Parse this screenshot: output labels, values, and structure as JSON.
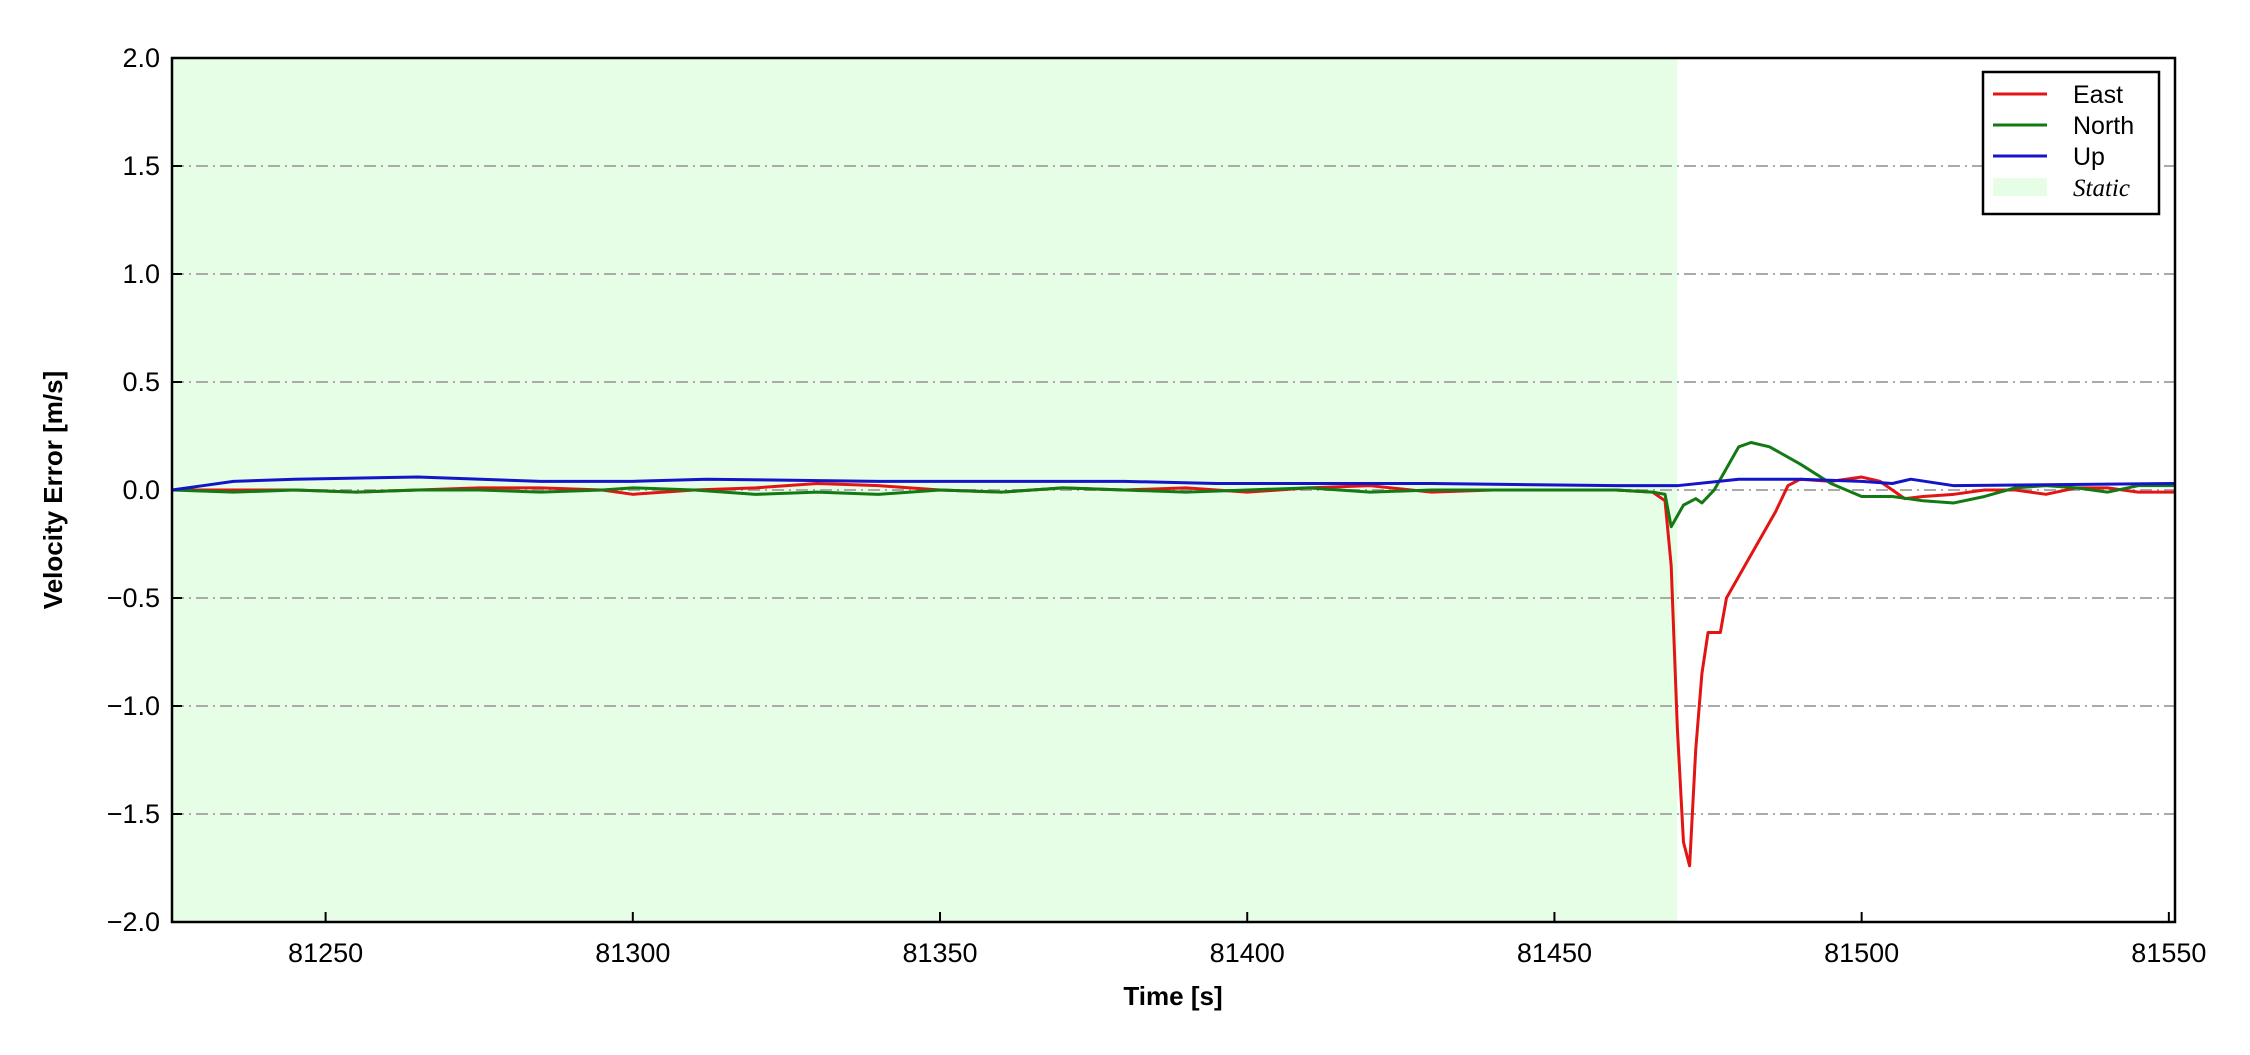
{
  "chart_data": {
    "type": "line",
    "xlabel": "Time [s]",
    "ylabel": "Velocity Error [m/s]",
    "xlim": [
      81225,
      81551
    ],
    "ylim": [
      -2.0,
      2.0
    ],
    "xticks": [
      81250,
      81300,
      81350,
      81400,
      81450,
      81500,
      81550
    ],
    "yticks": [
      {
        "value": -2.0,
        "label": "−2.0"
      },
      {
        "value": -1.5,
        "label": "−1.5"
      },
      {
        "value": -1.0,
        "label": "−1.0"
      },
      {
        "value": -0.5,
        "label": "−0.5"
      },
      {
        "value": 0,
        "label": "0.0"
      },
      {
        "value": 0.5,
        "label": "0.5"
      },
      {
        "value": 1.0,
        "label": "1.0"
      },
      {
        "value": 1.5,
        "label": "1.5"
      },
      {
        "value": 2.0,
        "label": "2.0"
      }
    ],
    "grid": true,
    "legend": "upper right",
    "shaded_regions": [
      {
        "name": "Static",
        "xmin": 81225,
        "xmax": 81470,
        "color": "#e6fde6"
      }
    ],
    "series": [
      {
        "name": "East",
        "color": "#e31414",
        "x": [
          81225,
          81235,
          81245,
          81255,
          81265,
          81275,
          81285,
          81295,
          81300,
          81310,
          81320,
          81330,
          81340,
          81350,
          81360,
          81370,
          81380,
          81390,
          81400,
          81410,
          81420,
          81430,
          81440,
          81450,
          81460,
          81466,
          81468,
          81469,
          81470,
          81471,
          81472,
          81473,
          81474,
          81475,
          81477,
          81478,
          81482,
          81486,
          81488,
          81490,
          81495,
          81500,
          81503,
          81507,
          81510,
          81515,
          81520,
          81525,
          81530,
          81535,
          81540,
          81545,
          81551
        ],
        "values": [
          0,
          0,
          0,
          -0.01,
          0,
          0.01,
          0.01,
          0,
          -0.02,
          0,
          0.01,
          0.03,
          0.02,
          0,
          -0.01,
          0.01,
          0,
          0.01,
          -0.01,
          0.01,
          0.02,
          -0.01,
          0,
          0,
          0,
          -0.01,
          -0.05,
          -0.35,
          -1.1,
          -1.63,
          -1.74,
          -1.2,
          -0.85,
          -0.66,
          -0.66,
          -0.5,
          -0.3,
          -0.1,
          0.02,
          0.05,
          0.04,
          0.06,
          0.04,
          -0.04,
          -0.03,
          -0.02,
          0,
          0,
          -0.02,
          0.01,
          0.01,
          -0.01,
          -0.01
        ]
      },
      {
        "name": "North",
        "color": "#137a13",
        "x": [
          81225,
          81235,
          81245,
          81255,
          81265,
          81275,
          81285,
          81295,
          81300,
          81310,
          81320,
          81330,
          81340,
          81350,
          81360,
          81370,
          81380,
          81390,
          81400,
          81410,
          81420,
          81430,
          81440,
          81450,
          81460,
          81466,
          81468,
          81469,
          81471,
          81473,
          81474,
          81476,
          81478,
          81480,
          81482,
          81485,
          81490,
          81495,
          81500,
          81505,
          81510,
          81515,
          81520,
          81525,
          81530,
          81535,
          81540,
          81545,
          81551
        ],
        "values": [
          0,
          -0.01,
          0,
          -0.01,
          0,
          0,
          -0.01,
          0,
          0.01,
          0,
          -0.02,
          -0.01,
          -0.02,
          0,
          -0.01,
          0.01,
          0,
          -0.01,
          0,
          0.01,
          -0.01,
          0,
          0,
          0,
          0,
          -0.01,
          -0.02,
          -0.17,
          -0.07,
          -0.04,
          -0.06,
          0,
          0.1,
          0.2,
          0.22,
          0.2,
          0.12,
          0.03,
          -0.03,
          -0.03,
          -0.05,
          -0.06,
          -0.03,
          0.01,
          0.02,
          0.01,
          -0.01,
          0.02,
          0.02
        ]
      },
      {
        "name": "Up",
        "color": "#1414c8",
        "x": [
          81225,
          81230,
          81235,
          81245,
          81265,
          81285,
          81300,
          81312,
          81340,
          81380,
          81395,
          81430,
          81460,
          81470,
          81480,
          81490,
          81500,
          81505,
          81508,
          81515,
          81551
        ],
        "values": [
          0,
          0.02,
          0.04,
          0.05,
          0.06,
          0.04,
          0.04,
          0.05,
          0.04,
          0.04,
          0.03,
          0.03,
          0.02,
          0.02,
          0.05,
          0.05,
          0.04,
          0.03,
          0.05,
          0.02,
          0.03
        ]
      }
    ]
  }
}
